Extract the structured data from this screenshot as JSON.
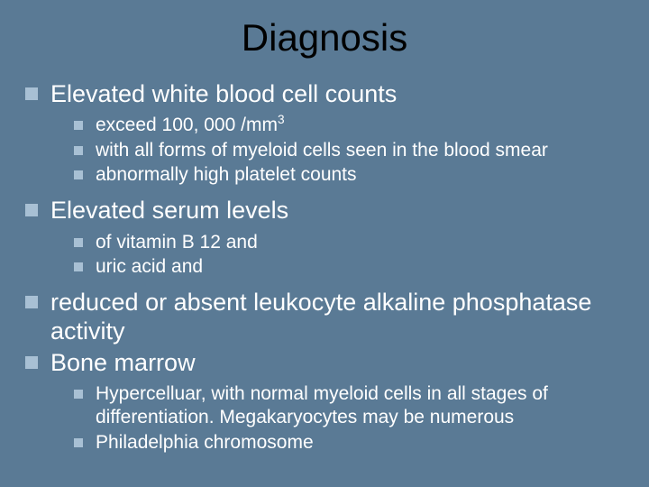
{
  "title": "Diagnosis",
  "items": [
    {
      "text": "Elevated white blood cell counts",
      "sub": [
        {
          "html": "exceed 100, 000 /mm<sup>3</sup>"
        },
        {
          "text": "with all forms of myeloid cells seen in the blood smear"
        },
        {
          "text": " abnormally high platelet counts"
        }
      ]
    },
    {
      "text": "Elevated serum levels",
      "sub": [
        {
          "text": "of vitamin B 12 and"
        },
        {
          "text": "uric acid and"
        }
      ]
    },
    {
      "text": "reduced or absent leukocyte alkaline phosphatase activity",
      "sub": []
    },
    {
      "text": "Bone marrow",
      "sub": [
        {
          "text": "Hypercelluar, with normal myeloid cells in all stages of differentiation. Megakaryocytes may be numerous"
        },
        {
          "text": "Philadelphia chromosome"
        }
      ]
    }
  ],
  "colors": {
    "background": "#5a7a95",
    "title": "#000000",
    "body_text": "#ffffff",
    "bullet": "#a8c0d4"
  },
  "typography": {
    "title_fontsize": 42,
    "l1_fontsize": 27,
    "l2_fontsize": 21,
    "font_family": "Arial"
  }
}
